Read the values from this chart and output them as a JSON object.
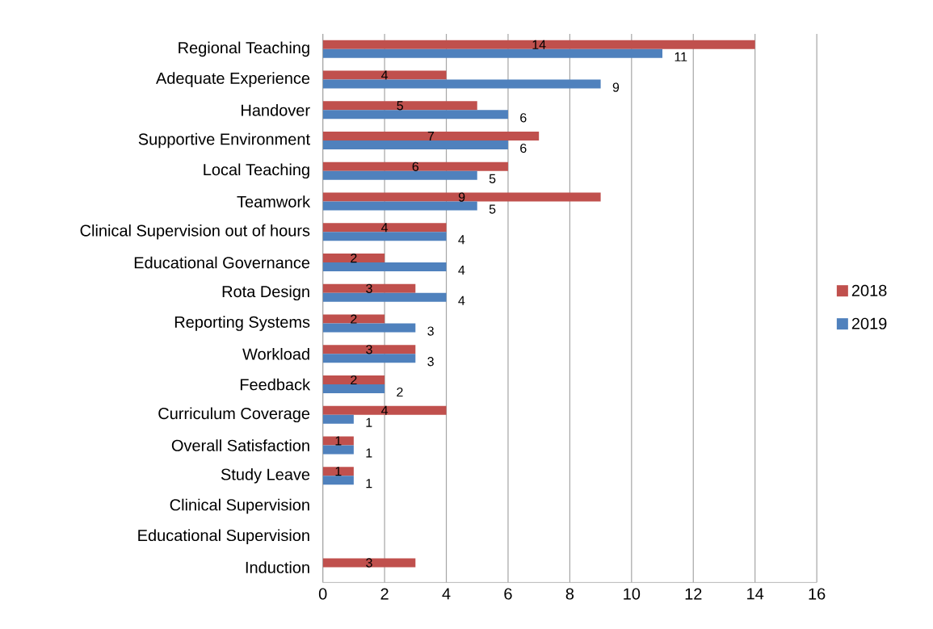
{
  "chart_data": {
    "type": "bar",
    "orientation": "horizontal",
    "categories": [
      "Regional Teaching",
      "Adequate Experience",
      "Handover",
      "Supportive Environment",
      "Local Teaching",
      "Teamwork",
      "Clinical Supervision out of hours",
      "Educational Governance",
      "Rota Design",
      "Reporting Systems",
      "Workload",
      "Feedback",
      "Curriculum Coverage",
      "Overall Satisfaction",
      "Study Leave",
      "Clinical Supervision",
      "Educational Supervision",
      "Induction"
    ],
    "series": [
      {
        "name": "2018",
        "color": "#c0504d",
        "values": [
          14,
          4,
          5,
          7,
          6,
          9,
          4,
          2,
          3,
          2,
          3,
          2,
          4,
          1,
          1,
          null,
          null,
          3
        ]
      },
      {
        "name": "2019",
        "color": "#4f81bd",
        "values": [
          11,
          9,
          6,
          6,
          5,
          5,
          4,
          4,
          4,
          3,
          3,
          2,
          1,
          1,
          1,
          null,
          null,
          null
        ]
      }
    ],
    "xlim": [
      0,
      16
    ],
    "xticks": [
      0,
      2,
      4,
      6,
      8,
      10,
      12,
      14,
      16
    ],
    "grid": "x",
    "legend": "right",
    "data_labels": true
  }
}
